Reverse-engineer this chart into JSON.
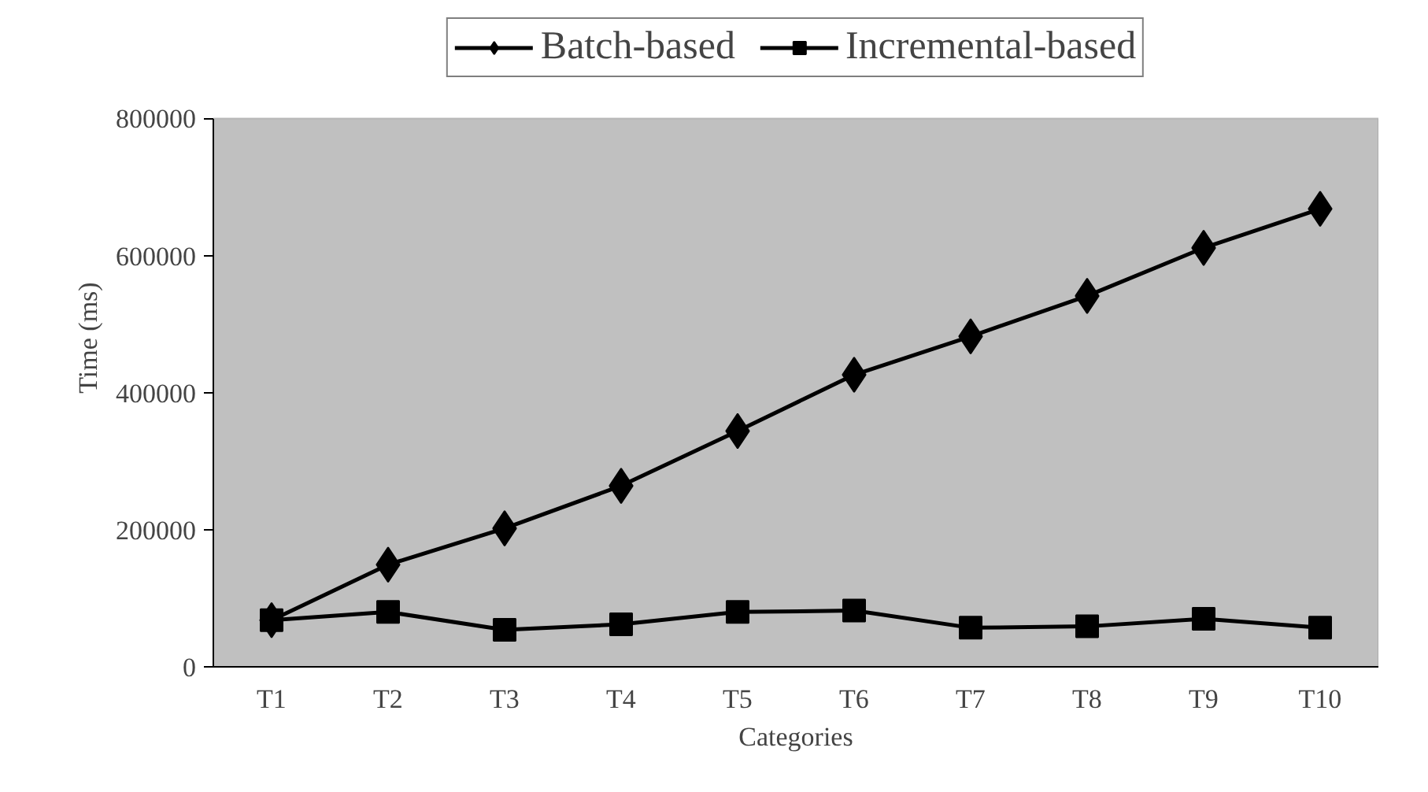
{
  "chart_data": {
    "type": "line",
    "xlabel": "Categories",
    "ylabel": "Time (ms)",
    "categories": [
      "T1",
      "T2",
      "T3",
      "T4",
      "T5",
      "T6",
      "T7",
      "T8",
      "T9",
      "T10"
    ],
    "series": [
      {
        "name": "Batch-based",
        "color": "#000000",
        "marker": "diamond",
        "values": [
          68000,
          149000,
          202000,
          264000,
          344000,
          426000,
          482000,
          541000,
          611000,
          668000
        ]
      },
      {
        "name": "Incremental-based",
        "color": "#000000",
        "marker": "square",
        "values": [
          68000,
          80000,
          54000,
          62000,
          80000,
          82000,
          57000,
          59000,
          70000,
          57000
        ]
      }
    ],
    "ylim": [
      0,
      800000
    ],
    "yticks": [
      0,
      200000,
      400000,
      600000,
      800000
    ],
    "grid": false,
    "legend": "top",
    "line_style": "solid"
  }
}
